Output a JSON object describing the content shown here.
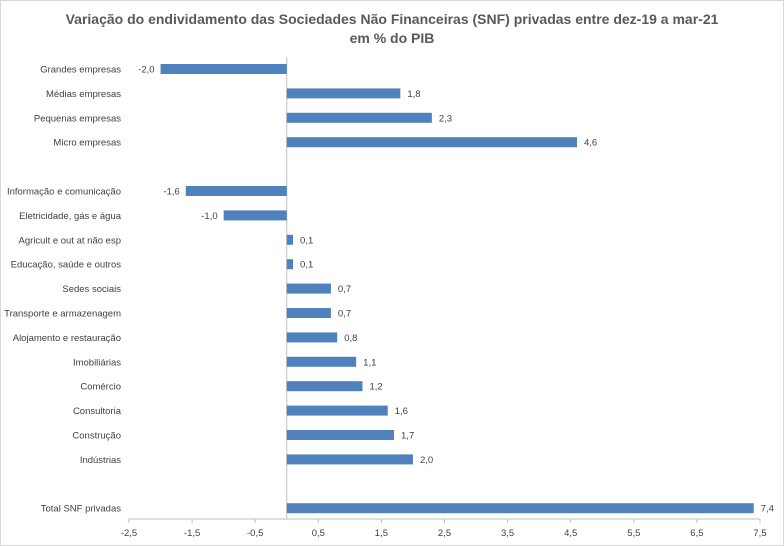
{
  "chart_data": {
    "type": "bar",
    "orientation": "horizontal",
    "title": "Variação do endividamento das Sociedades Não Financeiras (SNF) privadas entre dez-19 a mar-21",
    "subtitle": "em % do PIB",
    "xlabel": "",
    "ylabel": "",
    "xlim": [
      -2.5,
      7.5
    ],
    "grid": false,
    "legend": "none",
    "bar_color": "#4f81bd",
    "x_ticks": [
      "-2,5",
      "-1,5",
      "-0,5",
      "0,5",
      "1,5",
      "2,5",
      "3,5",
      "4,5",
      "5,5",
      "6,5",
      "7,5"
    ],
    "x_tick_values": [
      -2.5,
      -1.5,
      -0.5,
      0.5,
      1.5,
      2.5,
      3.5,
      4.5,
      5.5,
      6.5,
      7.5
    ],
    "categories": [
      "Grandes empresas",
      "Médias empresas",
      "Pequenas empresas",
      "Micro empresas",
      "",
      "Informação e comunicação",
      "Eletricidade, gás e água",
      "Agricult e out at não esp",
      "Educação, saúde e outros",
      "Sedes sociais",
      "Transporte e armazenagem",
      "Alojamento e restauração",
      "Imobiliárias",
      "Comércio",
      "Consultoria",
      "Construção",
      "Indústrias",
      "",
      "Total SNF privadas"
    ],
    "values": [
      -2.0,
      1.8,
      2.3,
      4.6,
      null,
      -1.6,
      -1.0,
      0.1,
      0.1,
      0.7,
      0.7,
      0.8,
      1.1,
      1.2,
      1.6,
      1.7,
      2.0,
      null,
      7.4
    ],
    "value_labels": [
      "-2,0",
      "1,8",
      "2,3",
      "4,6",
      "",
      "-1,6",
      "-1,0",
      "0,1",
      "0,1",
      "0,7",
      "0,7",
      "0,8",
      "1,1",
      "1,2",
      "1,6",
      "1,7",
      "2,0",
      "",
      "7,4"
    ]
  }
}
